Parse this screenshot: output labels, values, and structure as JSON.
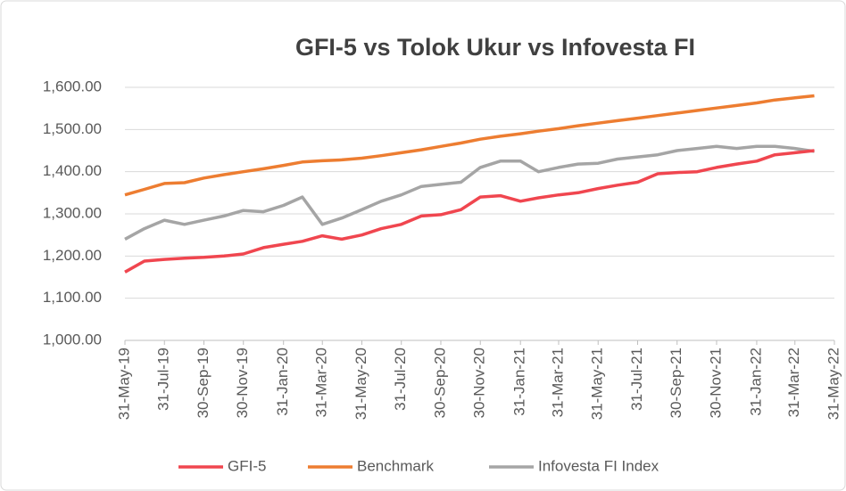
{
  "chart_data": {
    "type": "line",
    "title": "GFI-5 vs Tolok Ukur vs Infovesta FI",
    "x": [
      "2019-05-31",
      "2019-06-30",
      "2019-07-31",
      "2019-08-31",
      "2019-09-30",
      "2019-10-31",
      "2019-11-30",
      "2019-12-31",
      "2020-01-31",
      "2020-02-29",
      "2020-03-31",
      "2020-04-30",
      "2020-05-31",
      "2020-06-30",
      "2020-07-31",
      "2020-08-31",
      "2020-09-30",
      "2020-10-31",
      "2020-11-30",
      "2020-12-31",
      "2021-01-31",
      "2021-02-28",
      "2021-03-31",
      "2021-04-30",
      "2021-05-31",
      "2021-06-30",
      "2021-07-31",
      "2021-08-31",
      "2021-09-30",
      "2021-10-31",
      "2021-11-30",
      "2021-12-31",
      "2022-01-31",
      "2022-02-28",
      "2022-03-31",
      "2022-04-30"
    ],
    "series": [
      {
        "name": "GFI-5",
        "color": "#f0464f",
        "values": [
          1162,
          1188,
          1192,
          1195,
          1197,
          1200,
          1205,
          1220,
          1228,
          1235,
          1248,
          1240,
          1250,
          1265,
          1275,
          1295,
          1298,
          1310,
          1340,
          1343,
          1330,
          1338,
          1345,
          1350,
          1360,
          1368,
          1375,
          1395,
          1398,
          1400,
          1410,
          1418,
          1425,
          1440,
          1445,
          1450
        ]
      },
      {
        "name": "Benchmark",
        "color": "#ed7d31",
        "values": [
          1345,
          1358,
          1372,
          1374,
          1385,
          1393,
          1400,
          1407,
          1415,
          1423,
          1426,
          1428,
          1432,
          1438,
          1445,
          1452,
          1460,
          1468,
          1477,
          1484,
          1490,
          1496,
          1502,
          1509,
          1515,
          1521,
          1527,
          1533,
          1539,
          1545,
          1551,
          1557,
          1563,
          1570,
          1575,
          1580
        ]
      },
      {
        "name": "Infovesta FI Index",
        "color": "#a5a5a5",
        "values": [
          1240,
          1265,
          1285,
          1275,
          1285,
          1295,
          1308,
          1305,
          1320,
          1340,
          1275,
          1290,
          1310,
          1330,
          1345,
          1365,
          1370,
          1375,
          1410,
          1425,
          1425,
          1400,
          1410,
          1418,
          1420,
          1430,
          1435,
          1440,
          1450,
          1455,
          1460,
          1455,
          1460,
          1460,
          1455,
          1448
        ]
      }
    ],
    "ylim": [
      1000,
      1600
    ],
    "yticks": [
      {
        "value": 1000,
        "label": "1,000.00"
      },
      {
        "value": 1100,
        "label": "1,100.00"
      },
      {
        "value": 1200,
        "label": "1,200.00"
      },
      {
        "value": 1300,
        "label": "1,300.00"
      },
      {
        "value": 1400,
        "label": "1,400.00"
      },
      {
        "value": 1500,
        "label": "1,500.00"
      },
      {
        "value": 1600,
        "label": "1,600.00"
      }
    ],
    "xlim": [
      "2019-05-31",
      "2022-05-31"
    ],
    "xticks": [
      {
        "value": "2019-05-31",
        "label": "31-May-19"
      },
      {
        "value": "2019-07-31",
        "label": "31-Jul-19"
      },
      {
        "value": "2019-09-30",
        "label": "30-Sep-19"
      },
      {
        "value": "2019-11-30",
        "label": "30-Nov-19"
      },
      {
        "value": "2020-01-31",
        "label": "31-Jan-20"
      },
      {
        "value": "2020-03-31",
        "label": "31-Mar-20"
      },
      {
        "value": "2020-05-31",
        "label": "31-May-20"
      },
      {
        "value": "2020-07-31",
        "label": "31-Jul-20"
      },
      {
        "value": "2020-09-30",
        "label": "30-Sep-20"
      },
      {
        "value": "2020-11-30",
        "label": "30-Nov-20"
      },
      {
        "value": "2021-01-31",
        "label": "31-Jan-21"
      },
      {
        "value": "2021-03-31",
        "label": "31-Mar-21"
      },
      {
        "value": "2021-05-31",
        "label": "31-May-21"
      },
      {
        "value": "2021-07-31",
        "label": "31-Jul-21"
      },
      {
        "value": "2021-09-30",
        "label": "30-Sep-21"
      },
      {
        "value": "2021-11-30",
        "label": "30-Nov-21"
      },
      {
        "value": "2022-01-31",
        "label": "31-Jan-22"
      },
      {
        "value": "2022-03-31",
        "label": "31-Mar-22"
      },
      {
        "value": "2022-05-31",
        "label": "31-May-22"
      }
    ],
    "grid": true,
    "legend": "bottom"
  }
}
